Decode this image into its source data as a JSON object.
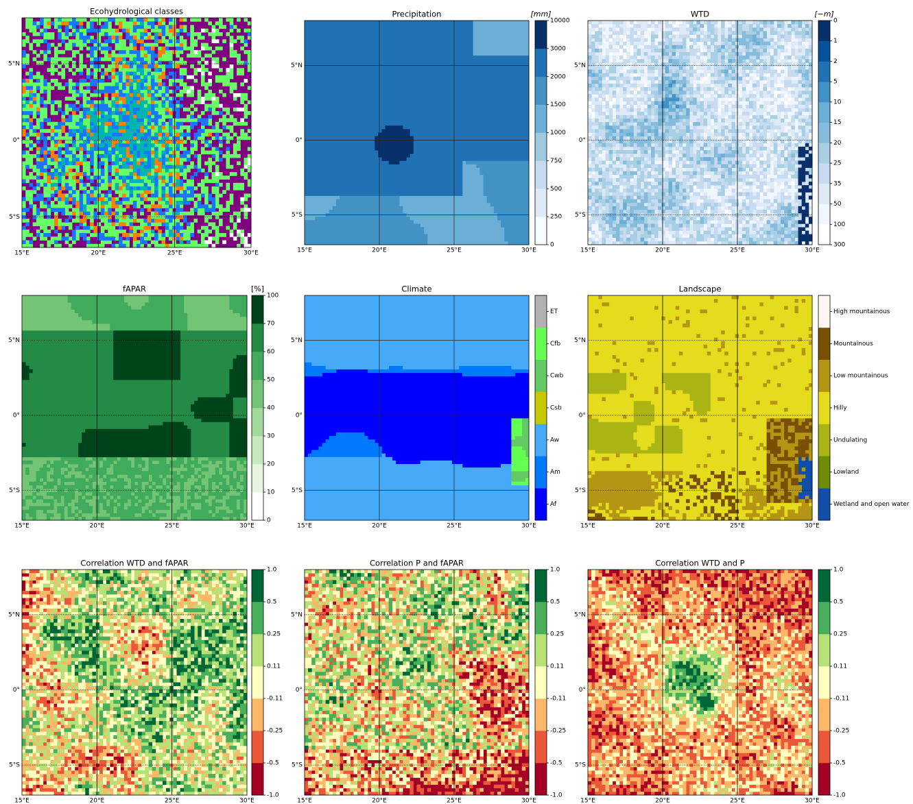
{
  "lat_labels": [
    "5°N",
    "0°",
    "5°S"
  ],
  "lon_labels": [
    "15°E",
    "20°E",
    "25°E",
    "30°E"
  ],
  "panels": [
    {
      "title": "Ecohydrological classes"
    },
    {
      "title": "Precipitation",
      "unit": "[mm]",
      "colorbar": {
        "labels": [
          "0",
          "250",
          "500",
          "750",
          "1000",
          "1500",
          "2000",
          "3000",
          "10000"
        ],
        "colors": [
          "#f7fbff",
          "#deebf7",
          "#c6dbef",
          "#9ecae1",
          "#6baed6",
          "#4292c6",
          "#2171b5",
          "#08306b"
        ]
      }
    },
    {
      "title": "WTD",
      "unit": "[−m]",
      "colorbar": {
        "labels": [
          "300",
          "100",
          "50",
          "35",
          "25",
          "20",
          "15",
          "10",
          "5",
          "2",
          "1",
          "0"
        ],
        "colors": [
          "#ffffff",
          "#f0f6fc",
          "#deebf7",
          "#c6dbef",
          "#a9cfe5",
          "#85bcdb",
          "#6baed6",
          "#4292c6",
          "#2171b5",
          "#08519c",
          "#08306b"
        ]
      }
    },
    {
      "title": "fAPAR",
      "unit": "[%]",
      "colorbar": {
        "labels": [
          "0",
          "10",
          "20",
          "30",
          "40",
          "50",
          "60",
          "70",
          "100"
        ],
        "colors": [
          "#ffffff",
          "#e5f5e0",
          "#c7e9c0",
          "#a1d99b",
          "#74c476",
          "#41ab5d",
          "#238b45",
          "#00441b"
        ]
      }
    },
    {
      "title": "Climate",
      "colorbar": {
        "labels": [
          "Af",
          "Am",
          "Aw",
          "Csb",
          "Cwb",
          "Cfb",
          "ET"
        ],
        "colors": [
          "#0000ff",
          "#0078ff",
          "#46aafa",
          "#c8c800",
          "#64c864",
          "#64ff50",
          "#b2b2b2"
        ]
      }
    },
    {
      "title": "Landscape",
      "colorbar": {
        "labels": [
          "Wetland and open water",
          "Lowland",
          "Undulating",
          "Hilly",
          "Low mountainous",
          "Mountainous",
          "High mountainous"
        ],
        "colors": [
          "#104ea8",
          "#6e8c0a",
          "#aab414",
          "#e6dc1e",
          "#b49614",
          "#785000",
          "#fff8f0"
        ]
      }
    },
    {
      "title": "Correlation WTD and fAPAR",
      "colorbar": {
        "labels": [
          "-1.0",
          "-0.5",
          "-0.25",
          "-0.11",
          "0.11",
          "0.25",
          "0.5",
          "1.0"
        ],
        "colors": [
          "#a50026",
          "#ea5739",
          "#fdb768",
          "#ffffc0",
          "#b7e075",
          "#4aaf5a",
          "#006837"
        ]
      }
    },
    {
      "title": "Correlation P and fAPAR",
      "colorbar": {
        "labels": [
          "-1.0",
          "-0.5",
          "-0.25",
          "-0.11",
          "0.11",
          "0.25",
          "0.5",
          "1.0"
        ],
        "colors": [
          "#a50026",
          "#ea5739",
          "#fdb768",
          "#ffffc0",
          "#b7e075",
          "#4aaf5a",
          "#006837"
        ]
      }
    },
    {
      "title": "Correlation WTD and P",
      "colorbar": {
        "labels": [
          "-1.0",
          "-0.5",
          "-0.25",
          "-0.11",
          "0.11",
          "0.25",
          "0.5",
          "1.0"
        ],
        "colors": [
          "#a50026",
          "#ea5739",
          "#fdb768",
          "#ffffc0",
          "#b7e075",
          "#4aaf5a",
          "#006837"
        ]
      }
    }
  ]
}
